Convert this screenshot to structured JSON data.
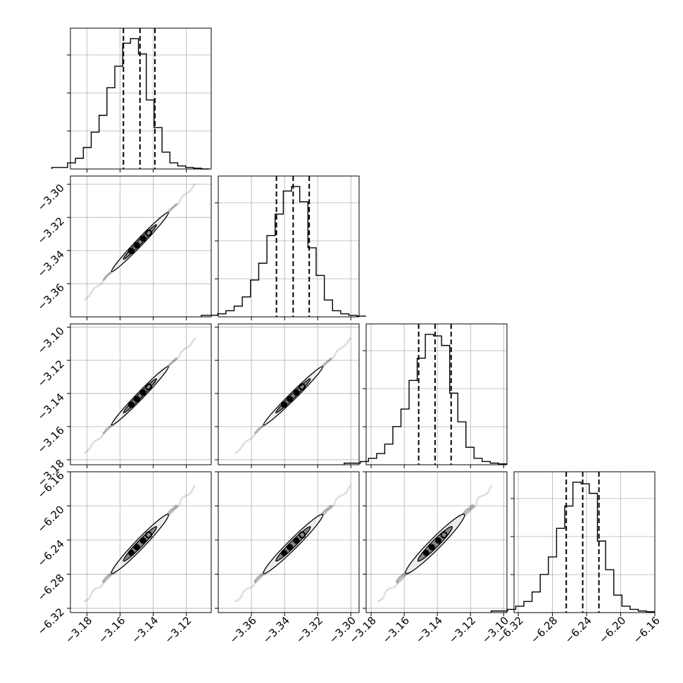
{
  "chart_data": {
    "type": "corner",
    "params": [
      {
        "range": [
          -3.19,
          -3.105
        ],
        "ticks": [
          -3.18,
          -3.16,
          -3.14,
          -3.12
        ],
        "tick_labels": [
          "−3.18",
          "−3.16",
          "−3.14",
          "−3.12"
        ],
        "quantiles": [
          -3.158,
          -3.148,
          -3.139
        ],
        "hist": [
          0.01,
          0.01,
          0.04,
          0.07,
          0.14,
          0.24,
          0.35,
          0.53,
          0.67,
          0.82,
          0.85,
          0.75,
          0.45,
          0.27,
          0.11,
          0.04,
          0.02,
          0.01,
          0.005,
          0
        ]
      },
      {
        "range": [
          -3.38,
          -3.295
        ],
        "ticks": [
          -3.36,
          -3.34,
          -3.32,
          -3.3
        ],
        "tick_labels": [
          "−3.36",
          "−3.34",
          "−3.32",
          "−3.30"
        ],
        "quantiles": [
          -3.3449,
          -3.3348,
          -3.3251
        ],
        "hist": [
          0.01,
          0.01,
          0.02,
          0.04,
          0.07,
          0.13,
          0.24,
          0.35,
          0.53,
          0.67,
          0.82,
          0.85,
          0.75,
          0.45,
          0.27,
          0.11,
          0.04,
          0.02,
          0.01,
          0.005
        ]
      },
      {
        "range": [
          -3.183,
          -3.098
        ],
        "ticks": [
          -3.18,
          -3.16,
          -3.14,
          -3.12,
          -3.1
        ],
        "tick_labels": [
          "−3.18",
          "−3.16",
          "−3.14",
          "−3.12",
          "−3.10"
        ],
        "quantiles": [
          -3.1513,
          -3.1414,
          -3.1317
        ],
        "hist": [
          0.01,
          0.01,
          0.02,
          0.04,
          0.07,
          0.13,
          0.24,
          0.35,
          0.53,
          0.67,
          0.82,
          0.81,
          0.75,
          0.45,
          0.27,
          0.11,
          0.04,
          0.02,
          0.01,
          0.005
        ]
      },
      {
        "range": [
          -6.325,
          -6.16
        ],
        "ticks": [
          -6.32,
          -6.28,
          -6.24,
          -6.2,
          -6.16
        ],
        "tick_labels": [
          "−6.32",
          "−6.28",
          "−6.24",
          "−6.20",
          "−6.16"
        ],
        "quantiles": [
          -6.2638,
          -6.2445,
          -6.2255
        ],
        "hist": [
          0.01,
          0.01,
          0.02,
          0.04,
          0.07,
          0.13,
          0.24,
          0.35,
          0.53,
          0.67,
          0.82,
          0.81,
          0.75,
          0.45,
          0.27,
          0.11,
          0.04,
          0.02,
          0.01,
          0.005
        ]
      }
    ],
    "grid": true
  }
}
